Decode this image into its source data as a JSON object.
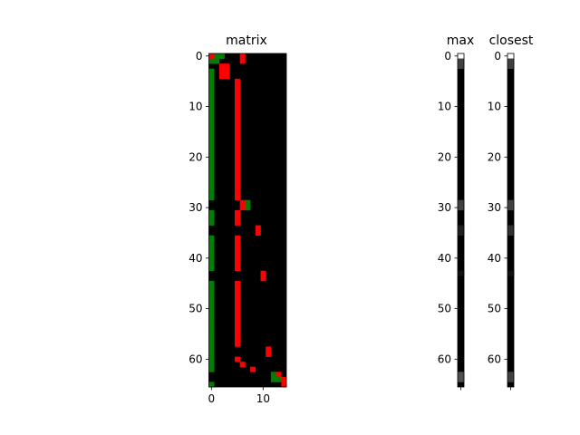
{
  "chart_data": [
    {
      "type": "heatmap",
      "title": "matrix",
      "rows": 66,
      "cols": 15,
      "background": "#000000",
      "colors": {
        "green": "#008000",
        "red": "#ff0000"
      },
      "green_cells": [
        [
          0,
          1
        ],
        [
          0,
          2
        ],
        [
          1,
          0
        ],
        [
          1,
          1
        ],
        [
          3,
          0
        ],
        [
          4,
          0
        ],
        [
          5,
          0
        ],
        [
          6,
          0
        ],
        [
          7,
          0
        ],
        [
          8,
          0
        ],
        [
          9,
          0
        ],
        [
          10,
          0
        ],
        [
          11,
          0
        ],
        [
          12,
          0
        ],
        [
          13,
          0
        ],
        [
          14,
          0
        ],
        [
          15,
          0
        ],
        [
          16,
          0
        ],
        [
          17,
          0
        ],
        [
          18,
          0
        ],
        [
          19,
          0
        ],
        [
          20,
          0
        ],
        [
          21,
          0
        ],
        [
          22,
          0
        ],
        [
          23,
          0
        ],
        [
          24,
          0
        ],
        [
          25,
          0
        ],
        [
          26,
          0
        ],
        [
          27,
          0
        ],
        [
          28,
          0
        ],
        [
          29,
          7
        ],
        [
          30,
          7
        ],
        [
          31,
          0
        ],
        [
          32,
          0
        ],
        [
          33,
          0
        ],
        [
          36,
          0
        ],
        [
          37,
          0
        ],
        [
          38,
          0
        ],
        [
          39,
          0
        ],
        [
          40,
          0
        ],
        [
          41,
          0
        ],
        [
          42,
          0
        ],
        [
          45,
          0
        ],
        [
          46,
          0
        ],
        [
          47,
          0
        ],
        [
          48,
          0
        ],
        [
          49,
          0
        ],
        [
          50,
          0
        ],
        [
          51,
          0
        ],
        [
          52,
          0
        ],
        [
          53,
          0
        ],
        [
          54,
          0
        ],
        [
          55,
          0
        ],
        [
          56,
          0
        ],
        [
          57,
          0
        ],
        [
          58,
          0
        ],
        [
          59,
          0
        ],
        [
          60,
          0
        ],
        [
          61,
          0
        ],
        [
          62,
          0
        ],
        [
          63,
          12
        ],
        [
          64,
          12
        ],
        [
          64,
          13
        ],
        [
          65,
          0
        ]
      ],
      "red_cells": [
        [
          0,
          0
        ],
        [
          0,
          6
        ],
        [
          1,
          6
        ],
        [
          2,
          2
        ],
        [
          2,
          3
        ],
        [
          3,
          2
        ],
        [
          3,
          3
        ],
        [
          4,
          2
        ],
        [
          4,
          3
        ],
        [
          5,
          5
        ],
        [
          6,
          5
        ],
        [
          7,
          5
        ],
        [
          8,
          5
        ],
        [
          9,
          5
        ],
        [
          10,
          5
        ],
        [
          11,
          5
        ],
        [
          12,
          5
        ],
        [
          13,
          5
        ],
        [
          14,
          5
        ],
        [
          15,
          5
        ],
        [
          16,
          5
        ],
        [
          17,
          5
        ],
        [
          18,
          5
        ],
        [
          19,
          5
        ],
        [
          20,
          5
        ],
        [
          21,
          5
        ],
        [
          22,
          5
        ],
        [
          23,
          5
        ],
        [
          24,
          5
        ],
        [
          25,
          5
        ],
        [
          26,
          5
        ],
        [
          27,
          5
        ],
        [
          28,
          5
        ],
        [
          29,
          6
        ],
        [
          30,
          6
        ],
        [
          31,
          5
        ],
        [
          32,
          5
        ],
        [
          33,
          5
        ],
        [
          34,
          9
        ],
        [
          35,
          9
        ],
        [
          36,
          5
        ],
        [
          37,
          5
        ],
        [
          38,
          5
        ],
        [
          39,
          5
        ],
        [
          40,
          5
        ],
        [
          41,
          5
        ],
        [
          42,
          5
        ],
        [
          43,
          10
        ],
        [
          44,
          10
        ],
        [
          45,
          5
        ],
        [
          46,
          5
        ],
        [
          47,
          5
        ],
        [
          48,
          5
        ],
        [
          49,
          5
        ],
        [
          50,
          5
        ],
        [
          51,
          5
        ],
        [
          52,
          5
        ],
        [
          53,
          5
        ],
        [
          54,
          5
        ],
        [
          55,
          5
        ],
        [
          56,
          5
        ],
        [
          57,
          5
        ],
        [
          58,
          11
        ],
        [
          59,
          11
        ],
        [
          60,
          5
        ],
        [
          61,
          6
        ],
        [
          62,
          8
        ],
        [
          63,
          13
        ],
        [
          64,
          14
        ],
        [
          65,
          14
        ]
      ],
      "xticks": [
        0,
        10
      ],
      "yticks": [
        0,
        10,
        20,
        30,
        40,
        50,
        60
      ]
    },
    {
      "type": "heatmap",
      "title": "max",
      "rows": 66,
      "cols": 1,
      "background": "#000000",
      "cells": [
        {
          "row": 0,
          "color": "#ffffff"
        },
        {
          "row": 1,
          "color": "#404040"
        },
        {
          "row": 2,
          "color": "#404040"
        },
        {
          "row": 29,
          "color": "#404040"
        },
        {
          "row": 30,
          "color": "#404040"
        },
        {
          "row": 34,
          "color": "#202020"
        },
        {
          "row": 35,
          "color": "#202020"
        },
        {
          "row": 43,
          "color": "#101010"
        },
        {
          "row": 63,
          "color": "#505050"
        },
        {
          "row": 64,
          "color": "#505050"
        }
      ],
      "yticks": [
        0,
        10,
        20,
        30,
        40,
        50,
        60
      ]
    },
    {
      "type": "heatmap",
      "title": "closest",
      "rows": 66,
      "cols": 1,
      "background": "#000000",
      "cells": [
        {
          "row": 0,
          "color": "#ffffff"
        },
        {
          "row": 1,
          "color": "#404040"
        },
        {
          "row": 2,
          "color": "#404040"
        },
        {
          "row": 29,
          "color": "#404040"
        },
        {
          "row": 30,
          "color": "#404040"
        },
        {
          "row": 34,
          "color": "#303030"
        },
        {
          "row": 35,
          "color": "#303030"
        },
        {
          "row": 43,
          "color": "#101010"
        },
        {
          "row": 63,
          "color": "#404040"
        },
        {
          "row": 64,
          "color": "#404040"
        }
      ],
      "yticks": [
        0,
        10,
        20,
        30,
        40,
        50,
        60
      ]
    }
  ]
}
